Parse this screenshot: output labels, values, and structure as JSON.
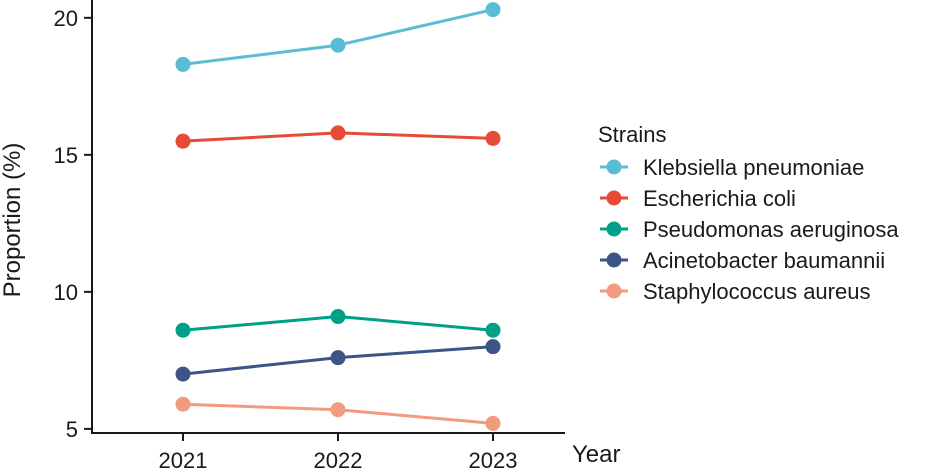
{
  "chart_data": {
    "type": "line",
    "title": "",
    "xlabel": "Year",
    "ylabel": "Proportion (%)",
    "categories": [
      "2021",
      "2022",
      "2023"
    ],
    "yticks": [
      5,
      10,
      15,
      20
    ],
    "ylim": [
      4.85,
      20.65
    ],
    "legend": {
      "title": "Strains",
      "position": "right"
    },
    "series": [
      {
        "name": "Klebsiella pneumoniae",
        "color": "#5bbcd6",
        "values": [
          18.3,
          19.0,
          20.3
        ]
      },
      {
        "name": "Escherichia coli",
        "color": "#e64b35",
        "values": [
          15.5,
          15.8,
          15.6
        ]
      },
      {
        "name": "Pseudomonas aeruginosa",
        "color": "#00a087",
        "values": [
          8.6,
          9.1,
          8.6
        ]
      },
      {
        "name": "Acinetobacter baumannii",
        "color": "#3c5488",
        "values": [
          7.0,
          7.6,
          8.0
        ]
      },
      {
        "name": "Staphylococcus aureus",
        "color": "#f39b7f",
        "values": [
          5.9,
          5.7,
          5.2
        ]
      }
    ]
  }
}
